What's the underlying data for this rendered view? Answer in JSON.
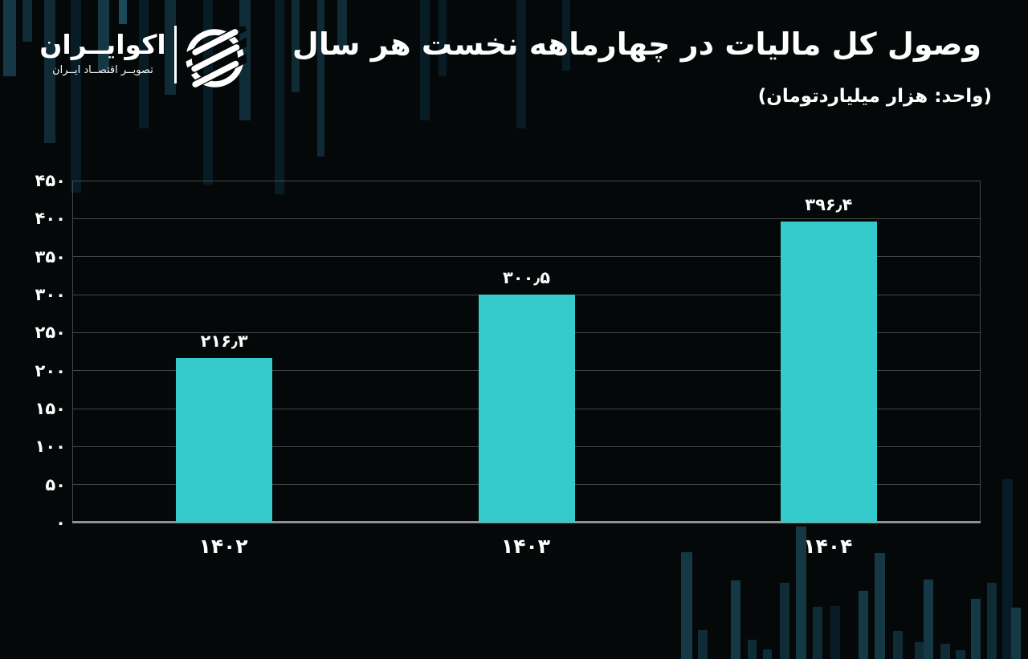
{
  "brand": {
    "name": "اکوایــران",
    "tagline": "تصویــر اقتصــاد ایــران",
    "logo_icon": "ecoiran-striped-globe-icon"
  },
  "chart_data": {
    "type": "bar",
    "title": "وصول کل مالیات در چهارماهه نخست هر سال",
    "subtitle": "(واحد: هزار میلیاردتومان)",
    "unit": "هزار میلیاردتومان",
    "categories": [
      "۱۴۰۲",
      "۱۴۰۳",
      "۱۴۰۴"
    ],
    "values": [
      216.3,
      300.5,
      396.4
    ],
    "value_labels": [
      "۲۱۶٫۳",
      "۳۰۰٫۵",
      "۳۹۶٫۴"
    ],
    "ylim": [
      0,
      450
    ],
    "y_ticks": [
      0,
      50,
      100,
      150,
      200,
      250,
      300,
      350,
      400,
      450
    ],
    "y_tick_labels": [
      "۰",
      "۵۰",
      "۱۰۰",
      "۱۵۰",
      "۲۰۰",
      "۲۵۰",
      "۳۰۰",
      "۳۵۰",
      "۴۰۰",
      "۴۵۰"
    ],
    "grid": "horizontal",
    "legend": "none",
    "direction": "rtl",
    "bar_color": "#35cbcd"
  },
  "colors": {
    "background": "#050809",
    "bar": "#35cbcd",
    "gridline": "#45484a",
    "axis_line": "#8e9294",
    "text": "#ffffff"
  }
}
